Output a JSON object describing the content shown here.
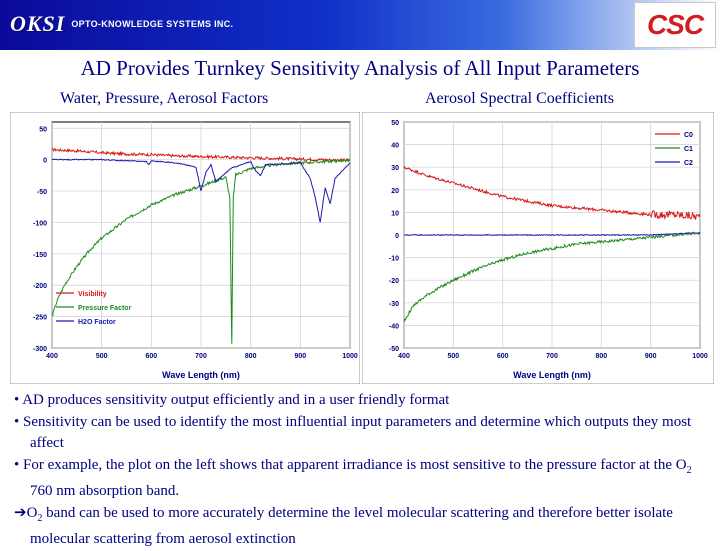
{
  "header": {
    "logo_left_mark": "OKSI",
    "logo_left_company": "OPTO-KNOWLEDGE SYSTEMS INC.",
    "logo_right": "CSC"
  },
  "title": "AD Provides Turnkey Sensitivity Analysis of All Input Parameters",
  "captions": {
    "left": "Water, Pressure, Aerosol Factors",
    "right": "Aerosol Spectral Coefficients"
  },
  "colors": {
    "red": "#d81818",
    "green": "#1e8a1e",
    "blue": "#1a1ab4",
    "title": "#000080"
  },
  "chart_data": [
    {
      "type": "line",
      "title": "Water, Pressure, Aerosol Factors",
      "xlabel": "Wave Length (nm)",
      "ylabel": "",
      "xlim": [
        400,
        1000
      ],
      "ylim": [
        -300,
        60
      ],
      "xticks": [
        400,
        500,
        600,
        700,
        800,
        900,
        1000
      ],
      "yticks": [
        50,
        0,
        -50,
        -100,
        -150,
        -200,
        -250,
        -300
      ],
      "legend_position": "bottom-left",
      "series": [
        {
          "name": "Visibility",
          "color": "#d81818",
          "x": [
            400,
            450,
            500,
            550,
            600,
            650,
            700,
            750,
            800,
            850,
            900,
            950,
            1000
          ],
          "y": [
            16,
            14,
            11,
            9,
            8,
            6,
            5,
            4,
            3,
            2,
            1,
            0,
            -1
          ]
        },
        {
          "name": "Pressure Factor",
          "color": "#1e8a1e",
          "x": [
            400,
            410,
            425,
            450,
            475,
            500,
            550,
            600,
            650,
            700,
            750,
            758,
            762,
            765,
            770,
            800,
            850,
            900,
            950,
            1000
          ],
          "y": [
            -250,
            -225,
            -200,
            -170,
            -145,
            -125,
            -95,
            -72,
            -55,
            -42,
            -28,
            -60,
            -295,
            -60,
            -24,
            -14,
            -8,
            -5,
            -3,
            -1
          ]
        },
        {
          "name": "H2O Factor",
          "color": "#1a1ab4",
          "x": [
            400,
            500,
            590,
            595,
            600,
            650,
            690,
            700,
            710,
            720,
            730,
            760,
            800,
            810,
            820,
            830,
            900,
            920,
            930,
            940,
            950,
            960,
            970,
            1000
          ],
          "y": [
            0,
            0,
            -3,
            -8,
            -2,
            -5,
            -12,
            -50,
            -20,
            -8,
            -35,
            -14,
            -3,
            -18,
            -25,
            -8,
            -5,
            -30,
            -60,
            -100,
            -45,
            -70,
            -30,
            -5
          ]
        }
      ]
    },
    {
      "type": "line",
      "title": "Aerosol Spectral Coefficients",
      "xlabel": "Wave Length (nm)",
      "ylabel": "",
      "xlim": [
        400,
        1000
      ],
      "ylim": [
        -50,
        50
      ],
      "xticks": [
        400,
        500,
        600,
        700,
        800,
        900,
        1000
      ],
      "yticks": [
        50,
        40,
        30,
        20,
        10,
        0,
        -10,
        -20,
        -30,
        -40,
        -50
      ],
      "legend_position": "top-right",
      "series": [
        {
          "name": "C0",
          "color": "#d81818",
          "x": [
            400,
            450,
            500,
            550,
            600,
            650,
            700,
            750,
            800,
            850,
            900,
            950,
            1000
          ],
          "y": [
            30,
            26,
            23,
            20,
            17,
            15,
            13,
            12,
            11,
            10,
            9,
            9,
            8
          ]
        },
        {
          "name": "C1",
          "color": "#1e8a1e",
          "x": [
            400,
            420,
            450,
            500,
            550,
            600,
            650,
            700,
            750,
            800,
            850,
            900,
            950,
            1000
          ],
          "y": [
            -38,
            -31,
            -26,
            -20,
            -15,
            -11,
            -8,
            -6,
            -4,
            -3,
            -2,
            -1,
            0,
            1
          ]
        },
        {
          "name": "C2",
          "color": "#1a1ab4",
          "x": [
            400,
            500,
            600,
            700,
            800,
            900,
            1000
          ],
          "y": [
            0,
            0,
            0,
            0,
            0,
            0,
            1
          ]
        }
      ]
    }
  ],
  "bullets": {
    "b1": "AD produces sensitivity output efficiently and in a user friendly format",
    "b2": "Sensitivity can be used to identify the most influential input parameters and determine which outputs they most affect",
    "b3_pre": "For example, the plot on the left shows that apparent irradiance is most sensitive to the pressure factor at the O",
    "b3_sub": "2",
    "b3_post": " 760 nm absorption band.",
    "b4_pre": "O",
    "b4_sub": "2",
    "b4_post": " band can be used to more accurately determine the level molecular scattering and therefore better isolate molecular scattering from aerosol extinction"
  }
}
